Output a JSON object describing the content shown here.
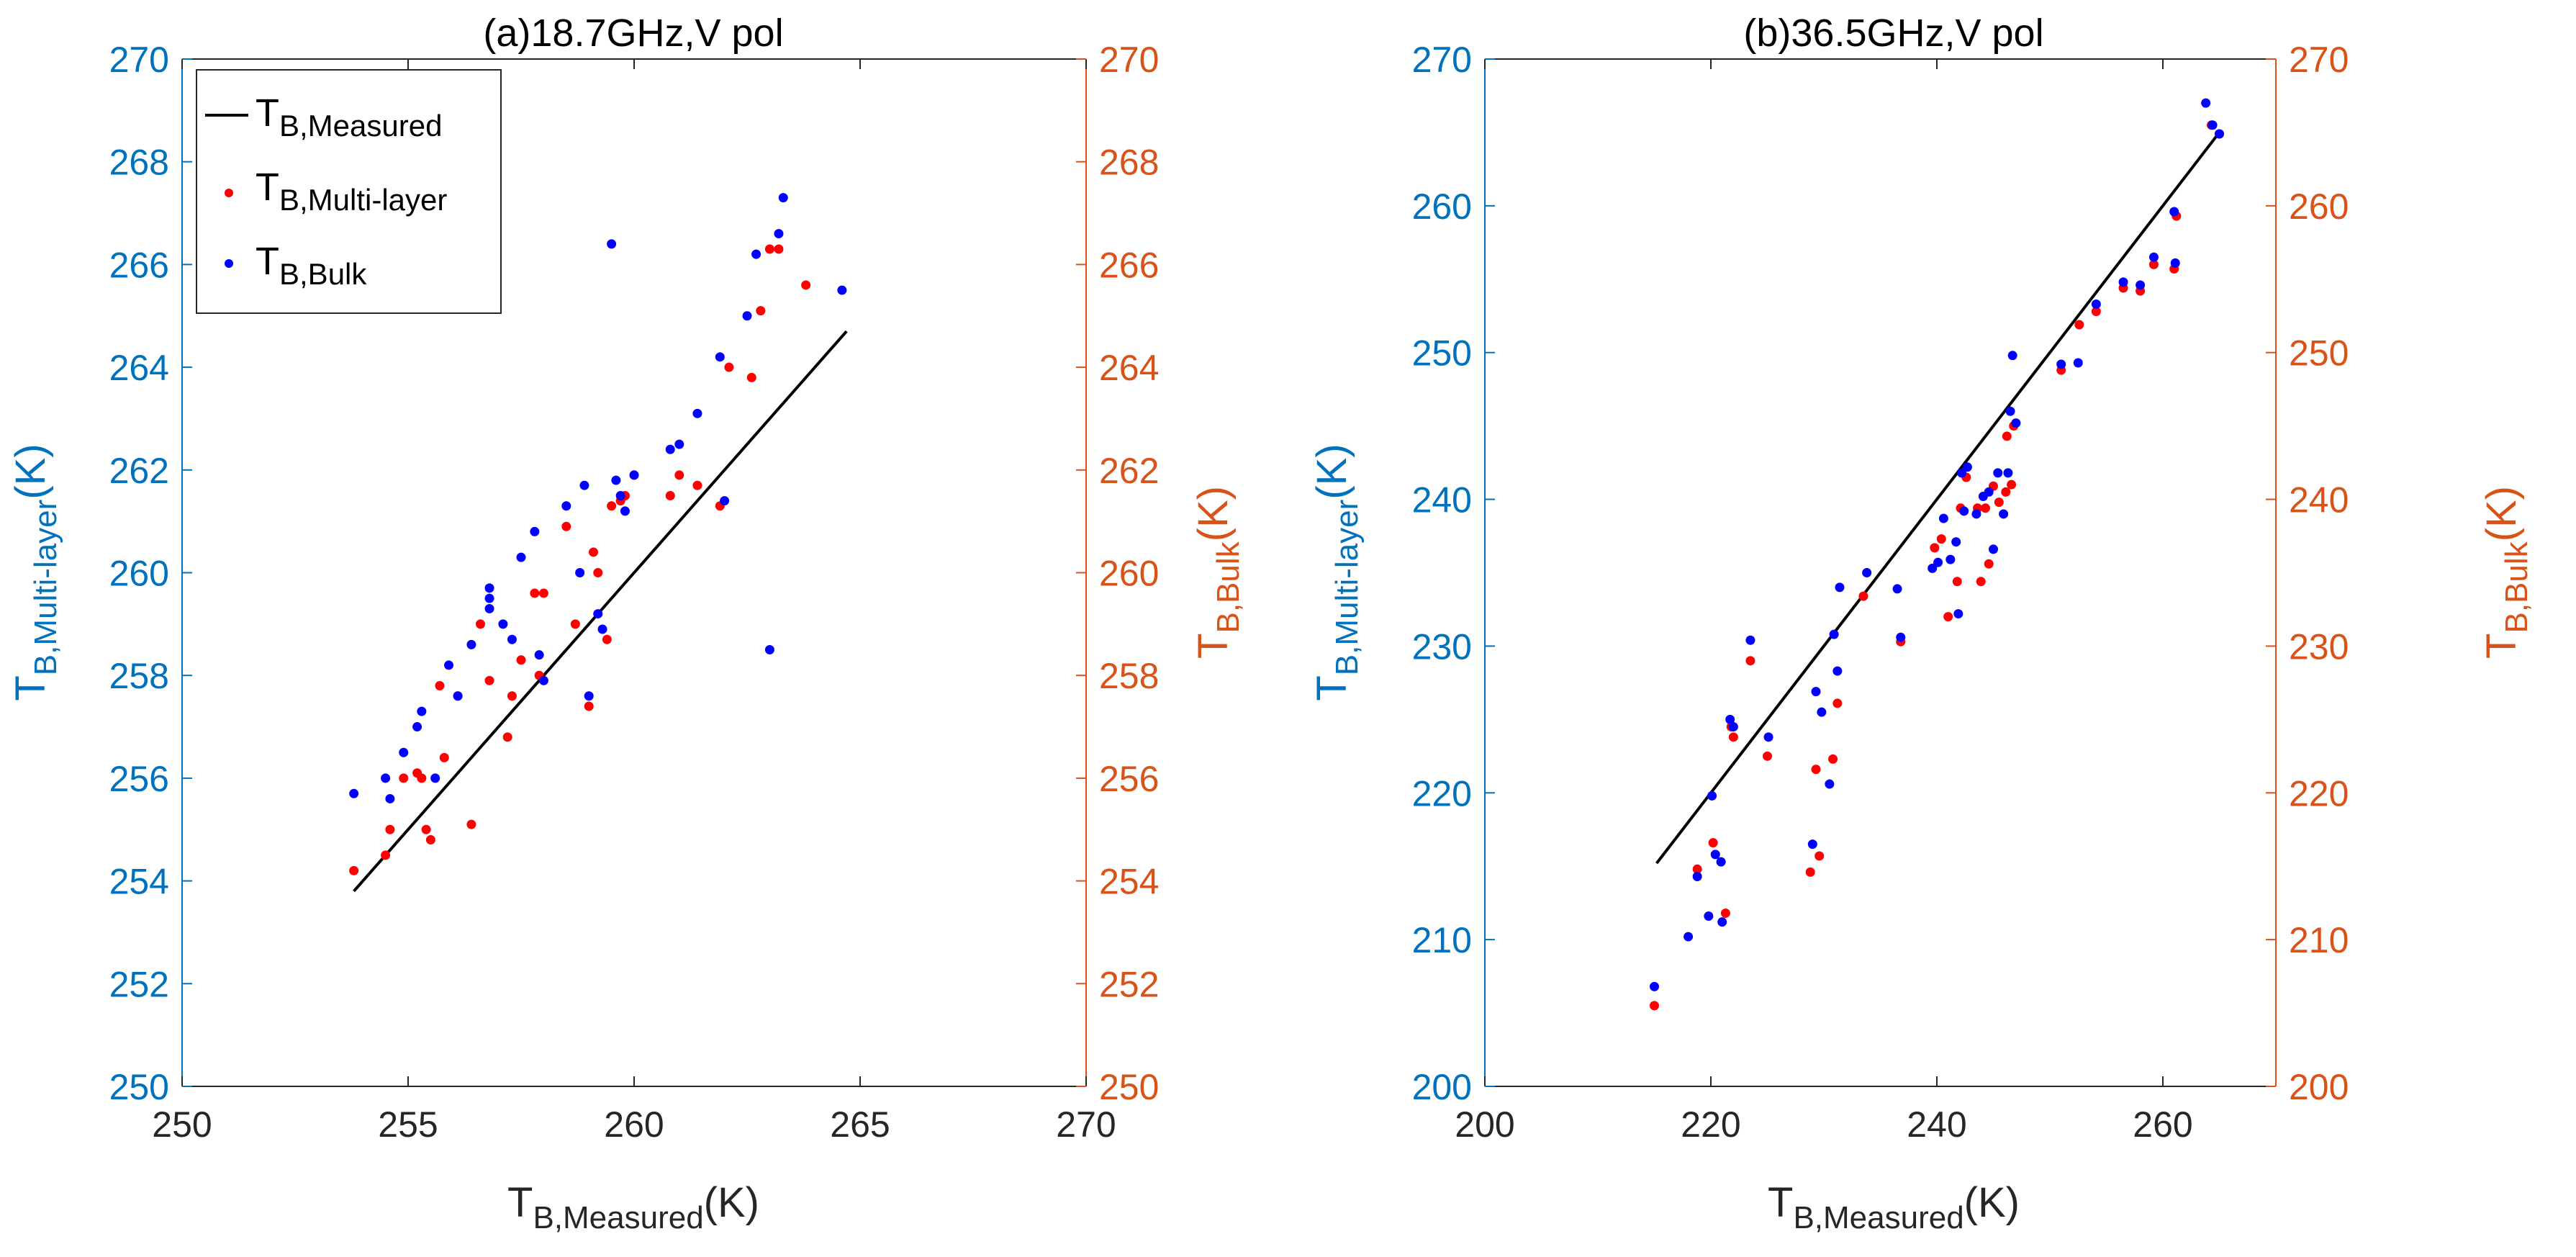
{
  "colors": {
    "left_axis": "#0072BD",
    "right_axis": "#D95319",
    "measured_line": "#000000",
    "multilayer_points": "#FF0000",
    "bulk_points": "#0000FF",
    "axis_box": "#262626"
  },
  "chart_data": [
    {
      "type": "scatter",
      "title": "(a)18.7GHz,V pol",
      "xlabel": {
        "main": "T",
        "sub": "B,Measured",
        "unit": "(K)"
      },
      "ylabel_left": {
        "main": "T",
        "sub": "B,Multi-layer",
        "unit": "(K)"
      },
      "ylabel_right": {
        "main": "T",
        "sub": "B,Bulk",
        "unit": "(K)"
      },
      "xlim": [
        250,
        270
      ],
      "ylim": [
        250,
        270
      ],
      "xticks": [
        250,
        255,
        260,
        265,
        270
      ],
      "yticks": [
        250,
        252,
        254,
        256,
        258,
        260,
        262,
        264,
        266,
        268,
        270
      ],
      "legend": {
        "position": "top-left",
        "entries": [
          {
            "main": "T",
            "sub": "B,Measured",
            "kind": "line"
          },
          {
            "main": "T",
            "sub": "B,Multi-layer",
            "kind": "red-dot"
          },
          {
            "main": "T",
            "sub": "B,Bulk",
            "kind": "blue-dot"
          }
        ]
      },
      "series": [
        {
          "name": "TB,Measured",
          "kind": "line",
          "x": [
            253.8,
            264.7
          ],
          "y": [
            253.8,
            264.7
          ]
        },
        {
          "name": "TB,Multi-layer",
          "kind": "scatter",
          "x": [
            253.8,
            254.5,
            254.6,
            254.9,
            255.2,
            255.3,
            255.4,
            255.5,
            255.7,
            255.8,
            256.1,
            256.4,
            256.6,
            256.8,
            257.2,
            257.3,
            257.5,
            257.8,
            257.9,
            258.0,
            258.5,
            258.7,
            259.0,
            259.1,
            259.2,
            259.4,
            259.5,
            259.7,
            259.8,
            260.0,
            260.8,
            261.0,
            261.4,
            261.9,
            262.1,
            262.6,
            262.8,
            263.0,
            263.2,
            263.8
          ],
          "y": [
            254.2,
            254.5,
            255.0,
            256.0,
            256.1,
            256.0,
            255.0,
            254.8,
            257.8,
            256.4,
            257.6,
            255.1,
            259.0,
            257.9,
            256.8,
            257.6,
            258.3,
            259.6,
            258.0,
            259.6,
            260.9,
            259.0,
            257.4,
            260.4,
            260.0,
            258.7,
            261.3,
            261.4,
            261.5,
            261.9,
            261.5,
            261.9,
            261.7,
            261.3,
            264.0,
            263.8,
            265.1,
            266.3,
            266.3,
            265.6
          ]
        },
        {
          "name": "TB,Bulk",
          "kind": "scatter",
          "x": [
            253.8,
            254.5,
            254.6,
            254.9,
            255.2,
            255.3,
            255.6,
            255.9,
            256.1,
            256.4,
            256.8,
            256.8,
            256.8,
            257.1,
            257.3,
            257.5,
            257.8,
            257.9,
            258.0,
            258.5,
            258.8,
            258.9,
            259.0,
            259.2,
            259.3,
            259.5,
            259.6,
            259.7,
            259.8,
            260.0,
            260.8,
            261.0,
            261.4,
            261.9,
            262.0,
            262.5,
            262.7,
            263.0,
            263.2,
            263.3,
            264.6
          ],
          "y": [
            255.7,
            256.0,
            255.6,
            256.5,
            257.0,
            257.3,
            256.0,
            258.2,
            257.6,
            258.6,
            259.7,
            259.5,
            259.3,
            259.0,
            258.7,
            260.3,
            260.8,
            258.4,
            257.9,
            261.3,
            260.0,
            261.7,
            257.6,
            259.2,
            258.9,
            266.4,
            261.8,
            261.5,
            261.2,
            261.9,
            262.4,
            262.5,
            263.1,
            264.2,
            261.4,
            265.0,
            266.2,
            258.5,
            266.6,
            267.3,
            265.5
          ]
        }
      ]
    },
    {
      "type": "scatter",
      "title": "(b)36.5GHz,V pol",
      "xlabel": {
        "main": "T",
        "sub": "B,Measured",
        "unit": "(K)"
      },
      "ylabel_left": {
        "main": "T",
        "sub": "B,Multi-layer",
        "unit": "(K)"
      },
      "ylabel_right": {
        "main": "T",
        "sub": "B,Bulk",
        "unit": "(K)"
      },
      "xlim": [
        200,
        270
      ],
      "ylim": [
        200,
        270
      ],
      "xticks": [
        200,
        220,
        240,
        260
      ],
      "yticks": [
        200,
        210,
        220,
        230,
        240,
        250,
        260,
        270
      ],
      "series": [
        {
          "name": "TB,Measured",
          "kind": "line",
          "x": [
            215.2,
            265.0
          ],
          "y": [
            215.2,
            265.0
          ]
        },
        {
          "name": "TB,Multi-layer",
          "kind": "scatter",
          "x": [
            215.0,
            218.8,
            220.2,
            221.3,
            221.8,
            222.0,
            223.5,
            225.0,
            228.8,
            229.3,
            229.6,
            230.8,
            231.2,
            233.5,
            236.8,
            239.8,
            240.4,
            241.0,
            241.8,
            242.1,
            242.6,
            243.6,
            243.9,
            244.3,
            244.6,
            245.0,
            245.5,
            246.1,
            246.2,
            246.6,
            246.8,
            251.0,
            252.6,
            254.1,
            256.5,
            258.0,
            259.2,
            261.0,
            261.2,
            264.3,
            265.0
          ],
          "y": [
            205.5,
            214.8,
            216.6,
            211.8,
            224.5,
            223.8,
            229.0,
            222.5,
            214.6,
            221.6,
            215.7,
            222.3,
            226.1,
            233.4,
            230.3,
            236.7,
            237.3,
            232.0,
            234.4,
            239.4,
            241.5,
            239.4,
            234.4,
            239.4,
            235.6,
            240.9,
            239.8,
            240.5,
            244.3,
            241.0,
            245.0,
            248.8,
            251.9,
            252.8,
            254.4,
            254.2,
            256.0,
            255.7,
            259.3,
            265.5,
            264.9
          ]
        },
        {
          "name": "TB,Bulk",
          "kind": "scatter",
          "x": [
            215.0,
            218.0,
            218.8,
            219.8,
            220.1,
            220.4,
            220.9,
            221.0,
            221.7,
            222.0,
            223.5,
            225.1,
            229.0,
            229.3,
            229.8,
            230.5,
            230.9,
            231.2,
            231.4,
            233.8,
            236.5,
            236.8,
            239.6,
            240.1,
            240.6,
            241.2,
            241.7,
            241.9,
            242.2,
            242.4,
            242.7,
            243.5,
            244.1,
            244.6,
            245.0,
            245.4,
            245.9,
            246.3,
            246.5,
            246.7,
            247.0,
            251.0,
            252.5,
            254.1,
            256.5,
            258.0,
            259.2,
            261.0,
            261.1,
            263.8,
            264.4,
            265.0
          ],
          "y": [
            206.8,
            210.2,
            214.3,
            211.6,
            219.8,
            215.8,
            215.3,
            211.2,
            225.0,
            224.5,
            230.4,
            223.8,
            216.5,
            226.9,
            225.5,
            220.6,
            230.8,
            228.3,
            234.0,
            235.0,
            233.9,
            230.6,
            235.3,
            235.7,
            238.7,
            235.9,
            237.1,
            232.2,
            241.8,
            239.2,
            242.2,
            239.0,
            240.2,
            240.5,
            236.6,
            241.8,
            239.0,
            241.8,
            246.0,
            249.8,
            245.2,
            249.2,
            249.3,
            253.3,
            254.8,
            254.6,
            256.5,
            259.6,
            256.1,
            267.0,
            265.5,
            264.9
          ]
        }
      ]
    }
  ]
}
